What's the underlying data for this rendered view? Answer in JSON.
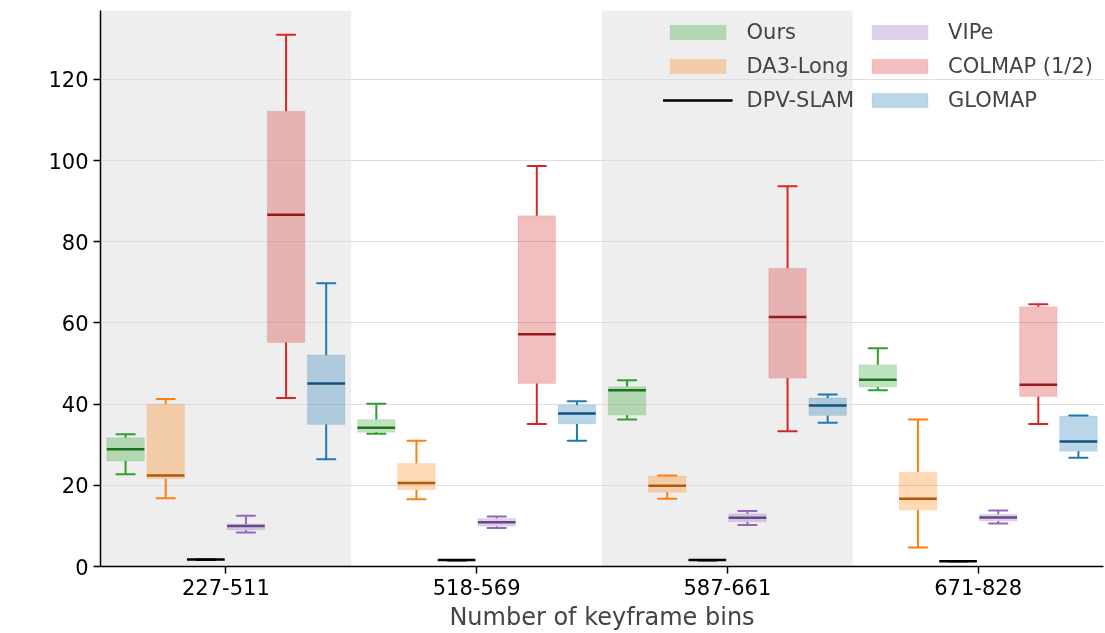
{
  "chart_data": {
    "type": "box",
    "xlabel": "Number of keyframe bins",
    "categories": [
      "227-511",
      "518-569",
      "587-661",
      "671-828"
    ],
    "ylim": [
      0,
      137
    ],
    "yticks": [
      0,
      20,
      40,
      60,
      80,
      100,
      120
    ],
    "grid": "y",
    "legend": "top right",
    "bands": [
      {
        "axis": "x",
        "from": "227-511",
        "to": "227-511",
        "color": "#eeeeee"
      },
      {
        "axis": "x",
        "from": "587-661",
        "to": "587-661",
        "color": "#eeeeee"
      }
    ],
    "series": [
      {
        "name": "Ours",
        "color": "#2ca02c",
        "boxes": [
          {
            "low": 22.7,
            "q1": 26.0,
            "median": 28.9,
            "q3": 31.7,
            "high": 32.6
          },
          {
            "low": 32.7,
            "q1": 33.1,
            "median": 34.2,
            "q3": 36.2,
            "high": 40.1
          },
          {
            "low": 36.2,
            "q1": 37.3,
            "median": 43.4,
            "q3": 44.3,
            "high": 45.9
          },
          {
            "low": 43.4,
            "q1": 44.2,
            "median": 46.0,
            "q3": 49.7,
            "high": 53.8
          }
        ]
      },
      {
        "name": "DA3-Long",
        "color": "#ff7f0e",
        "boxes": [
          {
            "low": 16.8,
            "q1": 21.6,
            "median": 22.4,
            "q3": 40.0,
            "high": 41.3
          },
          {
            "low": 16.6,
            "q1": 18.9,
            "median": 20.6,
            "q3": 25.4,
            "high": 31.0
          },
          {
            "low": 16.7,
            "q1": 18.3,
            "median": 19.9,
            "q3": 22.3,
            "high": 22.4
          },
          {
            "low": 4.7,
            "q1": 13.9,
            "median": 16.7,
            "q3": 23.3,
            "high": 36.2
          }
        ]
      },
      {
        "name": "DPV-SLAM",
        "color": "#000000",
        "boxes": [
          {
            "low": 1.6,
            "q1": 1.6,
            "median": 1.7,
            "q3": 1.7,
            "high": 1.7
          },
          {
            "low": 1.5,
            "q1": 1.5,
            "median": 1.6,
            "q3": 1.6,
            "high": 1.6
          },
          {
            "low": 1.5,
            "q1": 1.5,
            "median": 1.6,
            "q3": 1.6,
            "high": 1.6
          },
          {
            "low": 1.3,
            "q1": 1.3,
            "median": 1.3,
            "q3": 1.3,
            "high": 1.3
          }
        ]
      },
      {
        "name": "VIPe",
        "color": "#9467bd",
        "boxes": [
          {
            "low": 8.4,
            "q1": 9.0,
            "median": 10.0,
            "q3": 10.5,
            "high": 12.5
          },
          {
            "low": 9.5,
            "q1": 9.9,
            "median": 10.9,
            "q3": 11.8,
            "high": 12.3
          },
          {
            "low": 10.2,
            "q1": 11.0,
            "median": 12.0,
            "q3": 13.0,
            "high": 13.7
          },
          {
            "low": 10.6,
            "q1": 11.2,
            "median": 12.1,
            "q3": 12.9,
            "high": 13.8
          }
        ]
      },
      {
        "name": "COLMAP (1/2)",
        "color": "#d62728",
        "boxes": [
          {
            "low": 41.5,
            "q1": 55.2,
            "median": 86.7,
            "q3": 112.2,
            "high": 131.0
          },
          {
            "low": 35.1,
            "q1": 45.1,
            "median": 57.2,
            "q3": 86.4,
            "high": 98.7
          },
          {
            "low": 33.3,
            "q1": 46.4,
            "median": 61.5,
            "q3": 73.5,
            "high": 93.7
          },
          {
            "low": 35.1,
            "q1": 41.9,
            "median": 44.8,
            "q3": 64.0,
            "high": 64.6
          }
        ]
      },
      {
        "name": "GLOMAP",
        "color": "#1f77b4",
        "boxes": [
          {
            "low": 26.4,
            "q1": 35.0,
            "median": 45.1,
            "q3": 52.1,
            "high": 69.8
          },
          {
            "low": 31.0,
            "q1": 35.1,
            "median": 37.7,
            "q3": 39.8,
            "high": 40.7
          },
          {
            "low": 35.4,
            "q1": 37.2,
            "median": 39.7,
            "q3": 41.5,
            "high": 42.4
          },
          {
            "low": 26.8,
            "q1": 28.4,
            "median": 30.8,
            "q3": 37.1,
            "high": 37.2
          }
        ]
      }
    ]
  }
}
